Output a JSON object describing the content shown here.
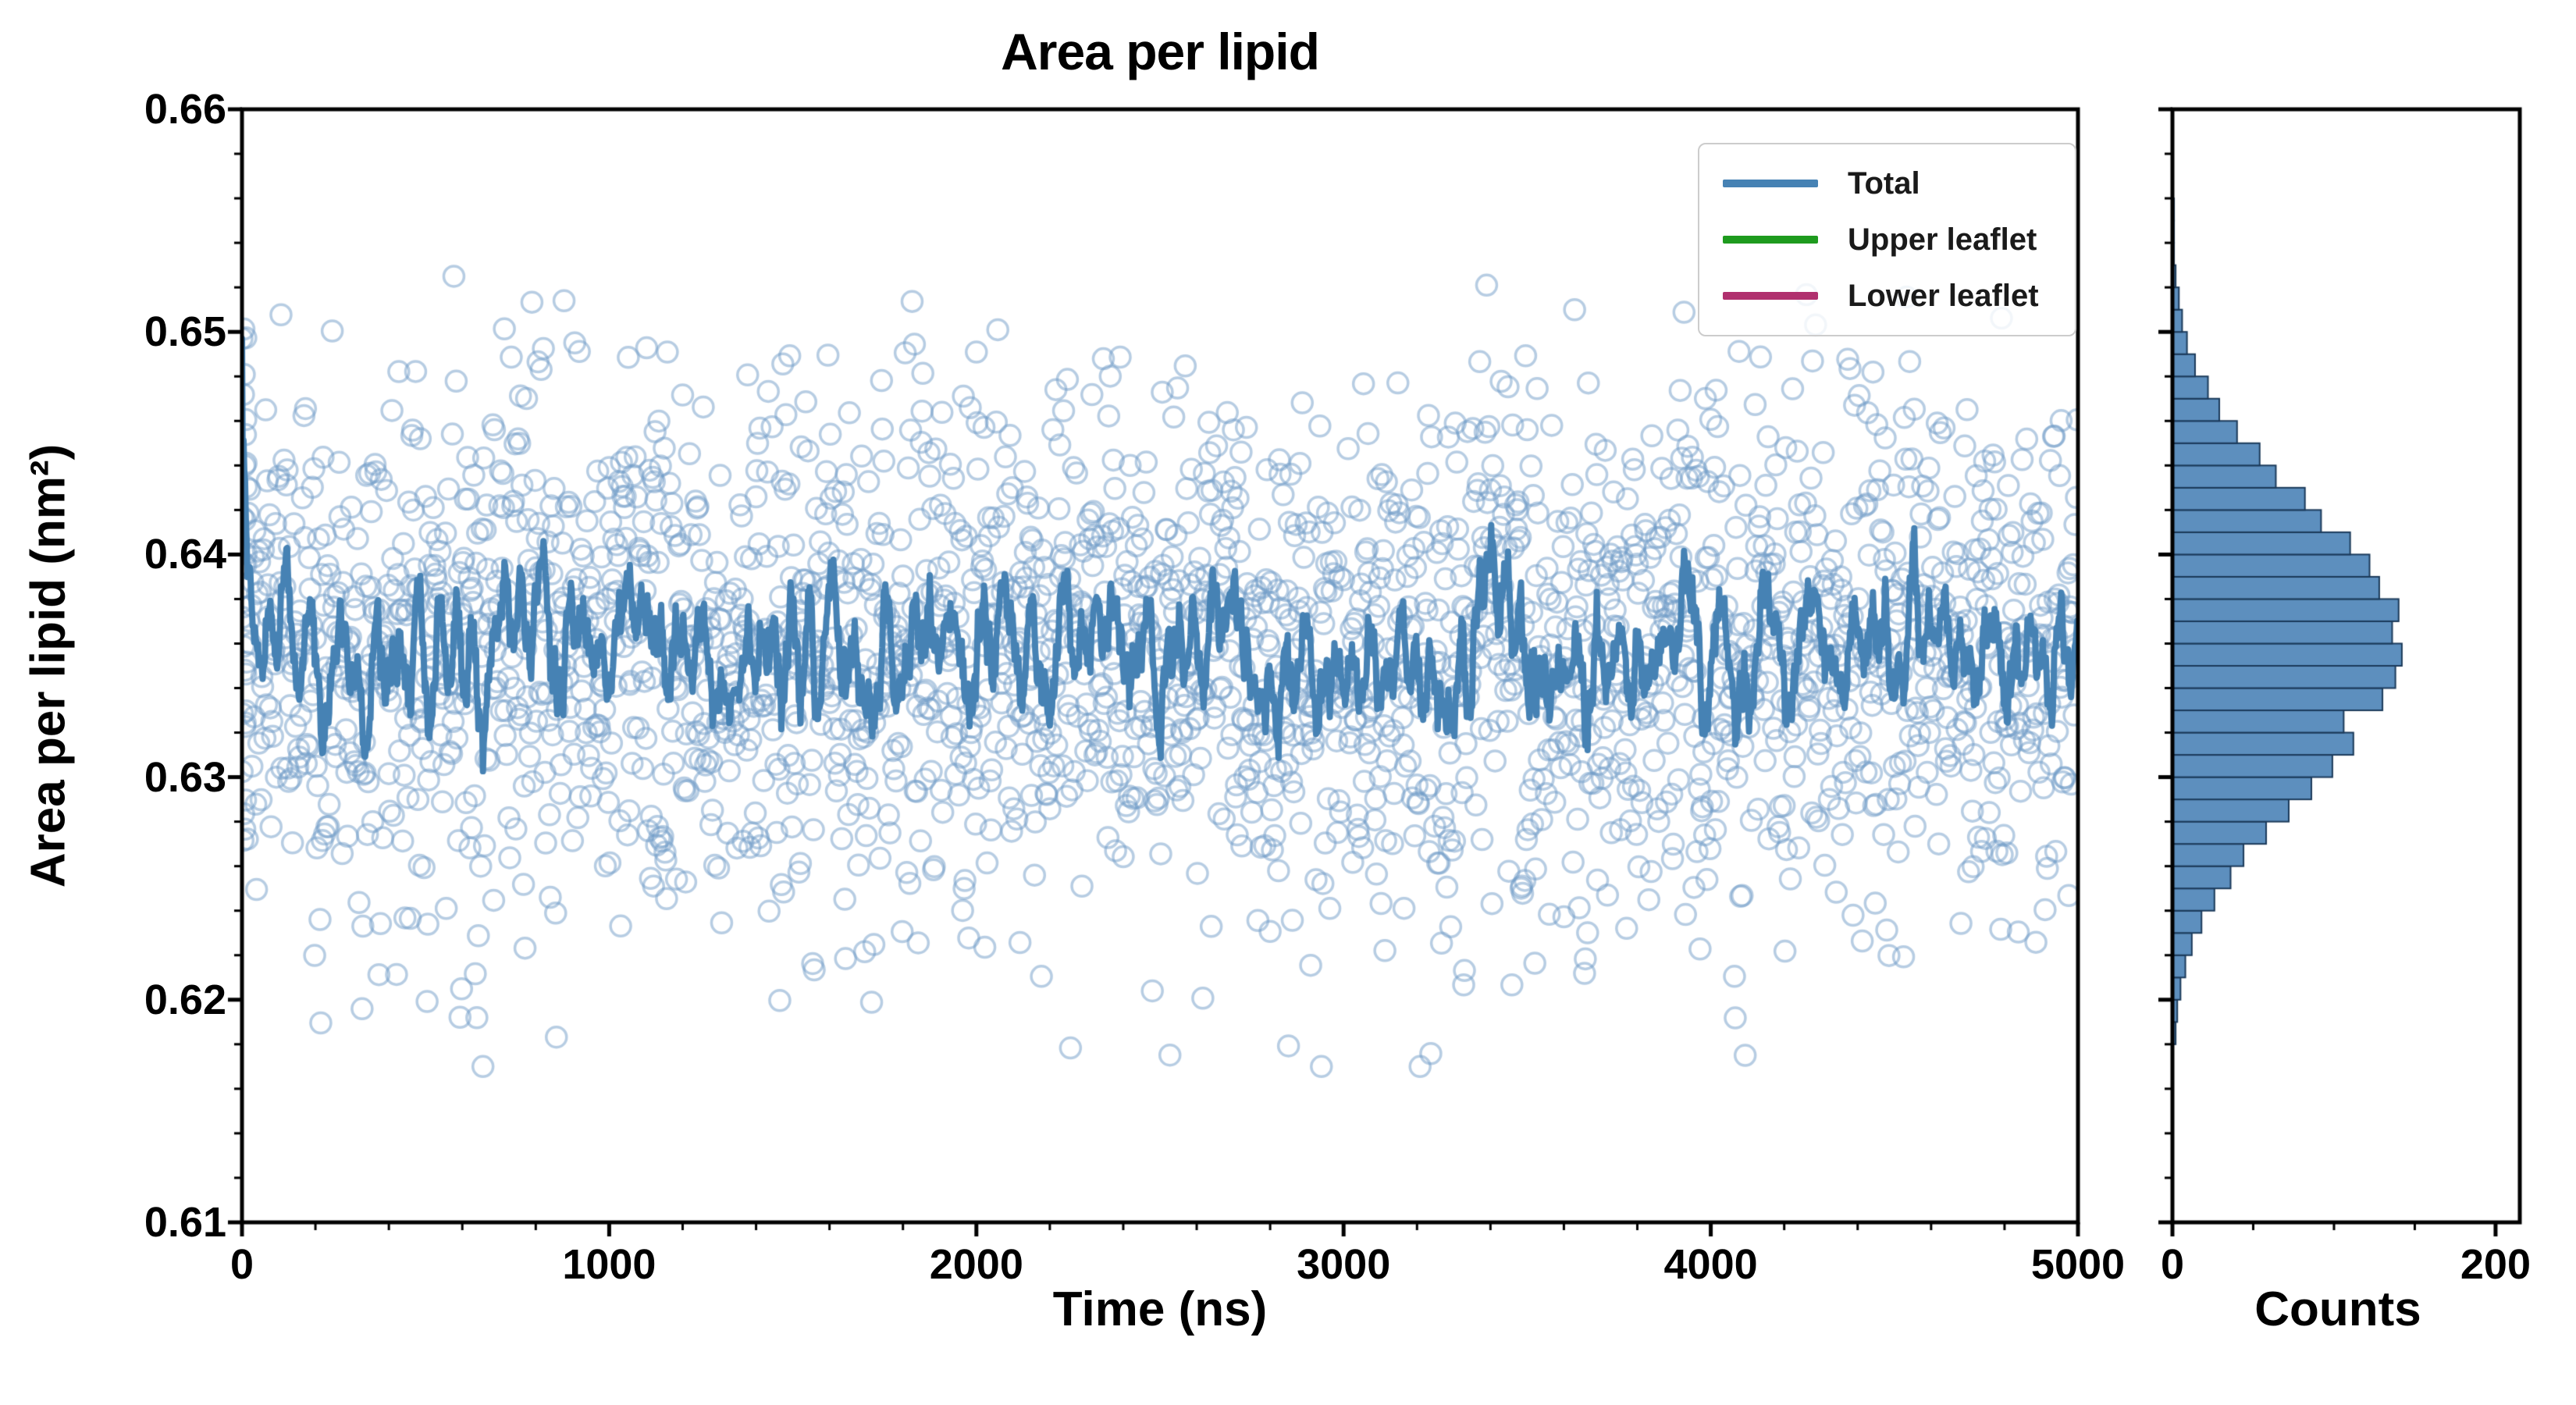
{
  "figure": {
    "title": "Area per lipid",
    "background": "#ffffff",
    "frame_color": "#000000"
  },
  "chart_data": [
    {
      "id": "timeseries",
      "type": "scatter",
      "title": "Area per lipid",
      "xlabel": "Time (ns)",
      "ylabel": "Area per lipid (nm²)",
      "xlim": [
        0,
        5000
      ],
      "ylim": [
        0.61,
        0.66
      ],
      "xticks": [
        0,
        1000,
        2000,
        3000,
        4000,
        5000
      ],
      "xtick_labels": [
        "0",
        "1000",
        "2000",
        "3000",
        "4000",
        "5000"
      ],
      "yticks": [
        0.61,
        0.62,
        0.63,
        0.64,
        0.65,
        0.66
      ],
      "ytick_labels": [
        "0.61",
        "0.62",
        "0.63",
        "0.64",
        "0.65",
        "0.66"
      ],
      "minor_x_step": 200,
      "minor_y_step": 0.002,
      "grid": false,
      "legend": {
        "position": "upper right",
        "entries": [
          {
            "label": "Total",
            "color": "#4682b4",
            "marker": "line"
          },
          {
            "label": "Upper leaflet",
            "color": "#1e9b1e",
            "marker": "line"
          },
          {
            "label": "Lower leaflet",
            "color": "#b0306e",
            "marker": "line"
          }
        ]
      },
      "series": [
        {
          "name": "per-frame leaflet samples",
          "style": "open-circles",
          "color": "#6f9cc7",
          "alpha": 0.5,
          "n_points": 2400,
          "x_range": [
            0,
            5000
          ],
          "y_mean": 0.6358,
          "y_std": 0.0061,
          "y_clip": [
            0.617,
            0.658
          ],
          "seed": 1234,
          "initial_cluster": {
            "n": 24,
            "x_max": 12,
            "y_range": [
              0.627,
              0.651
            ]
          }
        },
        {
          "name": "Total (running mean)",
          "style": "line",
          "color": "#4682b4",
          "linewidth": 8,
          "window": 12,
          "start_value": 0.6497,
          "mean": 0.636
        }
      ]
    },
    {
      "id": "histogram",
      "type": "bar-horizontal",
      "xlabel": "Counts",
      "xlim": [
        0,
        215
      ],
      "xticks": [
        0,
        200
      ],
      "xtick_labels": [
        "0",
        "200"
      ],
      "minor_x_step": 50,
      "ylim": [
        0.61,
        0.66
      ],
      "minor_y_step": 0.002,
      "bin_start": 0.618,
      "bin_width": 0.001,
      "counts": [
        2,
        3,
        5,
        8,
        12,
        18,
        26,
        36,
        44,
        58,
        72,
        86,
        99,
        112,
        106,
        130,
        138,
        142,
        136,
        140,
        128,
        122,
        110,
        92,
        82,
        64,
        54,
        40,
        29,
        22,
        14,
        9,
        6,
        4,
        2,
        1,
        1,
        1
      ],
      "bar_fill": "#5d8fbe",
      "bar_edge": "#1b3a5a"
    }
  ]
}
